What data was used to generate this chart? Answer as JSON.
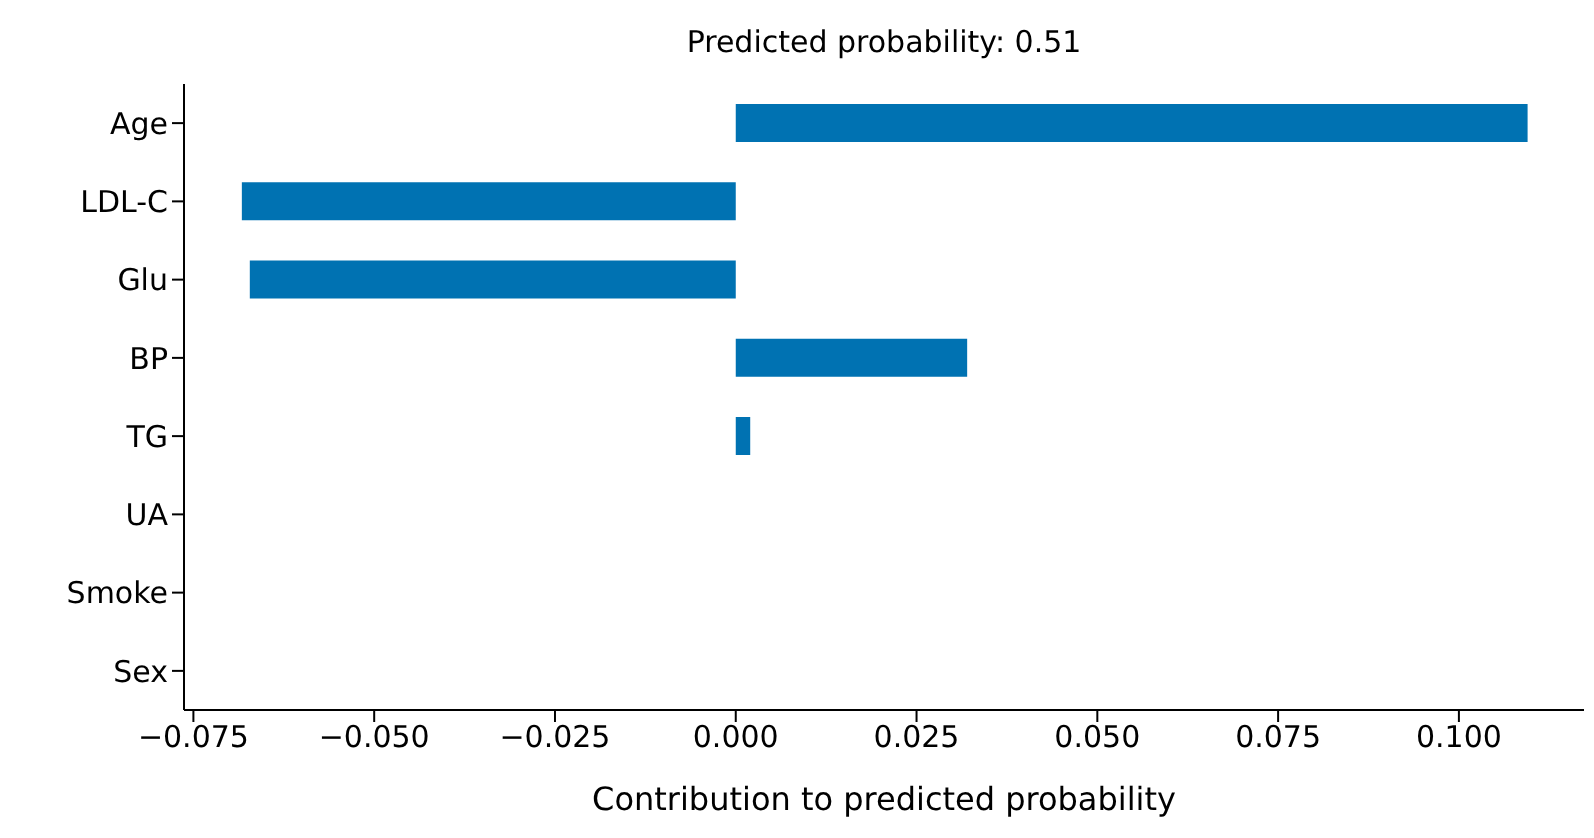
{
  "chart_data": {
    "type": "bar",
    "orientation": "horizontal",
    "title": "Predicted probability: 0.51",
    "xlabel": "Contribution to predicted probability",
    "categories": [
      "Age",
      "LDL-C",
      "Glu",
      "BP",
      "TG",
      "UA",
      "Smoke",
      "Sex"
    ],
    "values": [
      0.1095,
      -0.0683,
      -0.0672,
      0.032,
      0.002,
      0,
      0,
      0
    ],
    "color": "#0072b2",
    "xlim": [
      -0.0763,
      0.1173
    ],
    "xticks": [
      {
        "value": -0.075,
        "label": "−0.075"
      },
      {
        "value": -0.05,
        "label": "−0.050"
      },
      {
        "value": -0.025,
        "label": "−0.025"
      },
      {
        "value": 0,
        "label": "0.000"
      },
      {
        "value": 0.025,
        "label": "0.025"
      },
      {
        "value": 0.05,
        "label": "0.050"
      },
      {
        "value": 0.075,
        "label": "0.075"
      },
      {
        "value": 0.1,
        "label": "0.100"
      }
    ],
    "grid": false,
    "legend": false
  }
}
